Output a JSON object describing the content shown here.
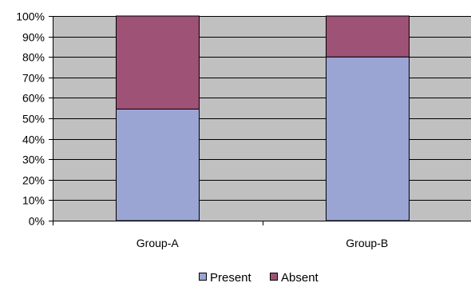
{
  "chart_data": {
    "type": "bar",
    "stacked": true,
    "percent_stacked": true,
    "categories": [
      "Group-A",
      "Group-B"
    ],
    "series": [
      {
        "name": "Present",
        "values": [
          54.5,
          80
        ]
      },
      {
        "name": "Absent",
        "values": [
          45.5,
          20
        ]
      }
    ],
    "title": "",
    "xlabel": "",
    "ylabel": "",
    "ylim": [
      0,
      100
    ],
    "yticks": [
      "0%",
      "10%",
      "20%",
      "30%",
      "40%",
      "50%",
      "60%",
      "70%",
      "80%",
      "90%",
      "100%"
    ],
    "grid": true,
    "legend_position": "bottom",
    "colors": {
      "Present": "#9aa5d4",
      "Absent": "#9e5275",
      "plot_background": "#c0c0c0",
      "axis": "#000000"
    }
  }
}
